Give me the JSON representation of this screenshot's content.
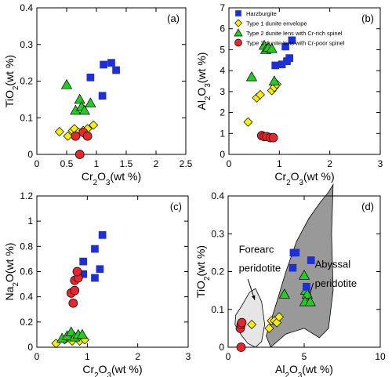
{
  "legend": [
    {
      "name": "Harzburgite",
      "marker": "square",
      "color": "#1f2fd8"
    },
    {
      "name": "Type 1 dunite envelope",
      "marker": "diamond",
      "color": "#f5f000"
    },
    {
      "name": "Type 2 dunite lens with Cr-rich spinel",
      "marker": "triangle",
      "color": "#22cc22"
    },
    {
      "name": "Type 3 dunite lens with Cr-poor spinel",
      "marker": "circle",
      "color": "#e8262b"
    }
  ],
  "chart_data": [
    {
      "type": "scatter",
      "panel_label": "(a)",
      "xlabel": "Cr2O3(wt %)",
      "ylabel": "TiO2(wt %)",
      "xlim": [
        0,
        2.5
      ],
      "ylim": [
        0,
        0.4
      ],
      "xticks": [
        "0",
        "0.5",
        "1",
        "1.5",
        "2",
        "2.5"
      ],
      "yticks": [
        "0",
        "0.1",
        "0.2",
        "0.3",
        "0.4"
      ],
      "series": [
        {
          "name": "Harzburgite",
          "points": [
            [
              0.9,
              0.21
            ],
            [
              1.1,
              0.16
            ],
            [
              1.12,
              0.245
            ],
            [
              1.25,
              0.25
            ],
            [
              1.33,
              0.23
            ]
          ]
        },
        {
          "name": "Type 1 dunite envelope",
          "points": [
            [
              0.38,
              0.062
            ],
            [
              0.52,
              0.05
            ],
            [
              0.6,
              0.065
            ],
            [
              0.63,
              0.07
            ],
            [
              0.7,
              0.06
            ],
            [
              0.78,
              0.065
            ],
            [
              0.85,
              0.07
            ],
            [
              0.95,
              0.08
            ]
          ]
        },
        {
          "name": "Type 2 dunite lens with Cr-rich spinel",
          "points": [
            [
              0.5,
              0.19
            ],
            [
              0.65,
              0.12
            ],
            [
              0.72,
              0.15
            ],
            [
              0.75,
              0.13
            ],
            [
              0.8,
              0.12
            ],
            [
              0.9,
              0.14
            ]
          ]
        },
        {
          "name": "Type 3 dunite lens with Cr-poor spinel",
          "points": [
            [
              0.65,
              0.05
            ],
            [
              0.72,
              0.0
            ],
            [
              0.78,
              0.06
            ],
            [
              0.85,
              0.05
            ]
          ]
        }
      ]
    },
    {
      "type": "scatter",
      "panel_label": "(b)",
      "xlabel": "Cr2O3(wt %)",
      "ylabel": "Al2O3(wt %)",
      "xlim": [
        0,
        3
      ],
      "ylim": [
        0,
        7
      ],
      "xticks": [
        "0",
        "1",
        "2",
        "3"
      ],
      "yticks": [
        "0",
        "1",
        "2",
        "3",
        "4",
        "5",
        "6",
        "7"
      ],
      "series": [
        {
          "name": "Harzburgite",
          "points": [
            [
              0.92,
              4.25
            ],
            [
              1.05,
              4.3
            ],
            [
              1.12,
              5.15
            ],
            [
              1.15,
              4.45
            ],
            [
              1.2,
              4.6
            ],
            [
              1.25,
              5.45
            ]
          ]
        },
        {
          "name": "Type 1 dunite envelope",
          "points": [
            [
              0.38,
              1.55
            ],
            [
              0.55,
              2.7
            ],
            [
              0.62,
              2.85
            ],
            [
              0.85,
              3.05
            ],
            [
              0.9,
              3.2
            ],
            [
              0.95,
              3.35
            ]
          ]
        },
        {
          "name": "Type 2 dunite lens with Cr-rich spinel",
          "points": [
            [
              0.45,
              3.7
            ],
            [
              0.7,
              5.2
            ],
            [
              0.73,
              5.0
            ],
            [
              0.78,
              5.1
            ],
            [
              0.85,
              5.05
            ],
            [
              0.9,
              3.5
            ]
          ]
        },
        {
          "name": "Type 3 dunite lens with Cr-poor spinel",
          "points": [
            [
              0.65,
              0.9
            ],
            [
              0.7,
              0.85
            ],
            [
              0.75,
              0.85
            ],
            [
              0.82,
              0.8
            ],
            [
              0.88,
              0.8
            ]
          ]
        }
      ]
    },
    {
      "type": "scatter",
      "panel_label": "(c)",
      "xlabel": "Cr2O3(wt %)",
      "ylabel": "Na2O(wt %)",
      "xlim": [
        0,
        3
      ],
      "ylim": [
        0,
        1.2
      ],
      "xticks": [
        "0",
        "1",
        "2",
        "3"
      ],
      "yticks": [
        "0",
        "0.2",
        "0.4",
        "0.6",
        "0.8",
        "1",
        "1.2"
      ],
      "series": [
        {
          "name": "Harzburgite",
          "points": [
            [
              0.92,
              0.68
            ],
            [
              0.92,
              0.58
            ],
            [
              1.15,
              0.78
            ],
            [
              1.15,
              0.55
            ],
            [
              1.25,
              0.62
            ],
            [
              1.3,
              0.89
            ]
          ]
        },
        {
          "name": "Type 1 dunite envelope",
          "points": [
            [
              0.38,
              0.03
            ],
            [
              0.55,
              0.06
            ],
            [
              0.62,
              0.08
            ],
            [
              0.7,
              0.05
            ],
            [
              0.8,
              0.07
            ],
            [
              0.85,
              0.05
            ],
            [
              0.9,
              0.08
            ],
            [
              0.95,
              0.06
            ]
          ]
        },
        {
          "name": "Type 2 dunite lens with Cr-rich spinel",
          "points": [
            [
              0.5,
              0.07
            ],
            [
              0.6,
              0.09
            ],
            [
              0.68,
              0.12
            ],
            [
              0.75,
              0.08
            ],
            [
              0.82,
              0.1
            ],
            [
              0.9,
              0.1
            ]
          ]
        },
        {
          "name": "Type 3 dunite lens with Cr-poor spinel",
          "points": [
            [
              0.68,
              0.43
            ],
            [
              0.72,
              0.35
            ],
            [
              0.75,
              0.45
            ],
            [
              0.75,
              0.53
            ],
            [
              0.82,
              0.55
            ],
            [
              0.8,
              0.6
            ]
          ]
        }
      ]
    },
    {
      "type": "scatter",
      "panel_label": "(d)",
      "xlabel": "Al2O3(wt %)",
      "ylabel": "TiO2(wt %)",
      "xlim": [
        0,
        10
      ],
      "ylim": [
        0,
        0.4
      ],
      "xticks": [
        "0",
        "5",
        "10"
      ],
      "yticks": [
        "0",
        "0.1",
        "0.2",
        "0.3",
        "0.4"
      ],
      "fields": [
        {
          "name": "Forearc peridotite",
          "color": "#e6e6e6",
          "outline": [
            [
              0.45,
              0.06
            ],
            [
              0.9,
              0.03
            ],
            [
              1.3,
              0.01
            ],
            [
              1.8,
              0.0
            ],
            [
              2.2,
              0.015
            ],
            [
              2.4,
              0.06
            ],
            [
              2.2,
              0.12
            ],
            [
              1.8,
              0.155
            ],
            [
              1.4,
              0.145
            ],
            [
              0.9,
              0.11
            ],
            [
              0.5,
              0.085
            ]
          ]
        },
        {
          "name": "Abyssal peridotite",
          "color": "#999999",
          "outline": [
            [
              2.5,
              0.03
            ],
            [
              3.2,
              0.12
            ],
            [
              3.8,
              0.2
            ],
            [
              4.5,
              0.28
            ],
            [
              5.3,
              0.34
            ],
            [
              6.0,
              0.38
            ],
            [
              6.6,
              0.41
            ],
            [
              6.9,
              0.43
            ],
            [
              6.8,
              0.3
            ],
            [
              6.9,
              0.15
            ],
            [
              6.6,
              0.05
            ],
            [
              6.0,
              0.025
            ],
            [
              5.0,
              0.05
            ],
            [
              3.8,
              0.035
            ],
            [
              2.8,
              0.0
            ]
          ]
        }
      ],
      "annotations": [
        {
          "text": "Forearc",
          "x": 0.7,
          "y": 0.25
        },
        {
          "text": "peridotite",
          "x": 0.7,
          "y": 0.2
        },
        {
          "text": "Abyssal",
          "x": 5.7,
          "y": 0.21
        },
        {
          "text": "peridotite",
          "x": 5.7,
          "y": 0.16
        }
      ],
      "series": [
        {
          "name": "Harzburgite",
          "points": [
            [
              4.25,
              0.21
            ],
            [
              4.3,
              0.25
            ],
            [
              4.45,
              0.25
            ],
            [
              5.15,
              0.16
            ],
            [
              5.45,
              0.23
            ]
          ]
        },
        {
          "name": "Type 1 dunite envelope",
          "points": [
            [
              1.55,
              0.06
            ],
            [
              2.7,
              0.05
            ],
            [
              2.85,
              0.07
            ],
            [
              3.05,
              0.07
            ],
            [
              3.2,
              0.065
            ],
            [
              3.35,
              0.08
            ]
          ]
        },
        {
          "name": "Type 2 dunite lens with Cr-rich spinel",
          "points": [
            [
              3.7,
              0.14
            ],
            [
              5.0,
              0.19
            ],
            [
              5.1,
              0.15
            ],
            [
              5.2,
              0.14
            ],
            [
              5.05,
              0.12
            ],
            [
              5.4,
              0.12
            ]
          ]
        },
        {
          "name": "Type 3 dunite lens with Cr-poor spinel",
          "points": [
            [
              0.8,
              0.05
            ],
            [
              0.85,
              0.06
            ],
            [
              0.85,
              0.0
            ],
            [
              0.9,
              0.065
            ]
          ]
        }
      ]
    }
  ]
}
